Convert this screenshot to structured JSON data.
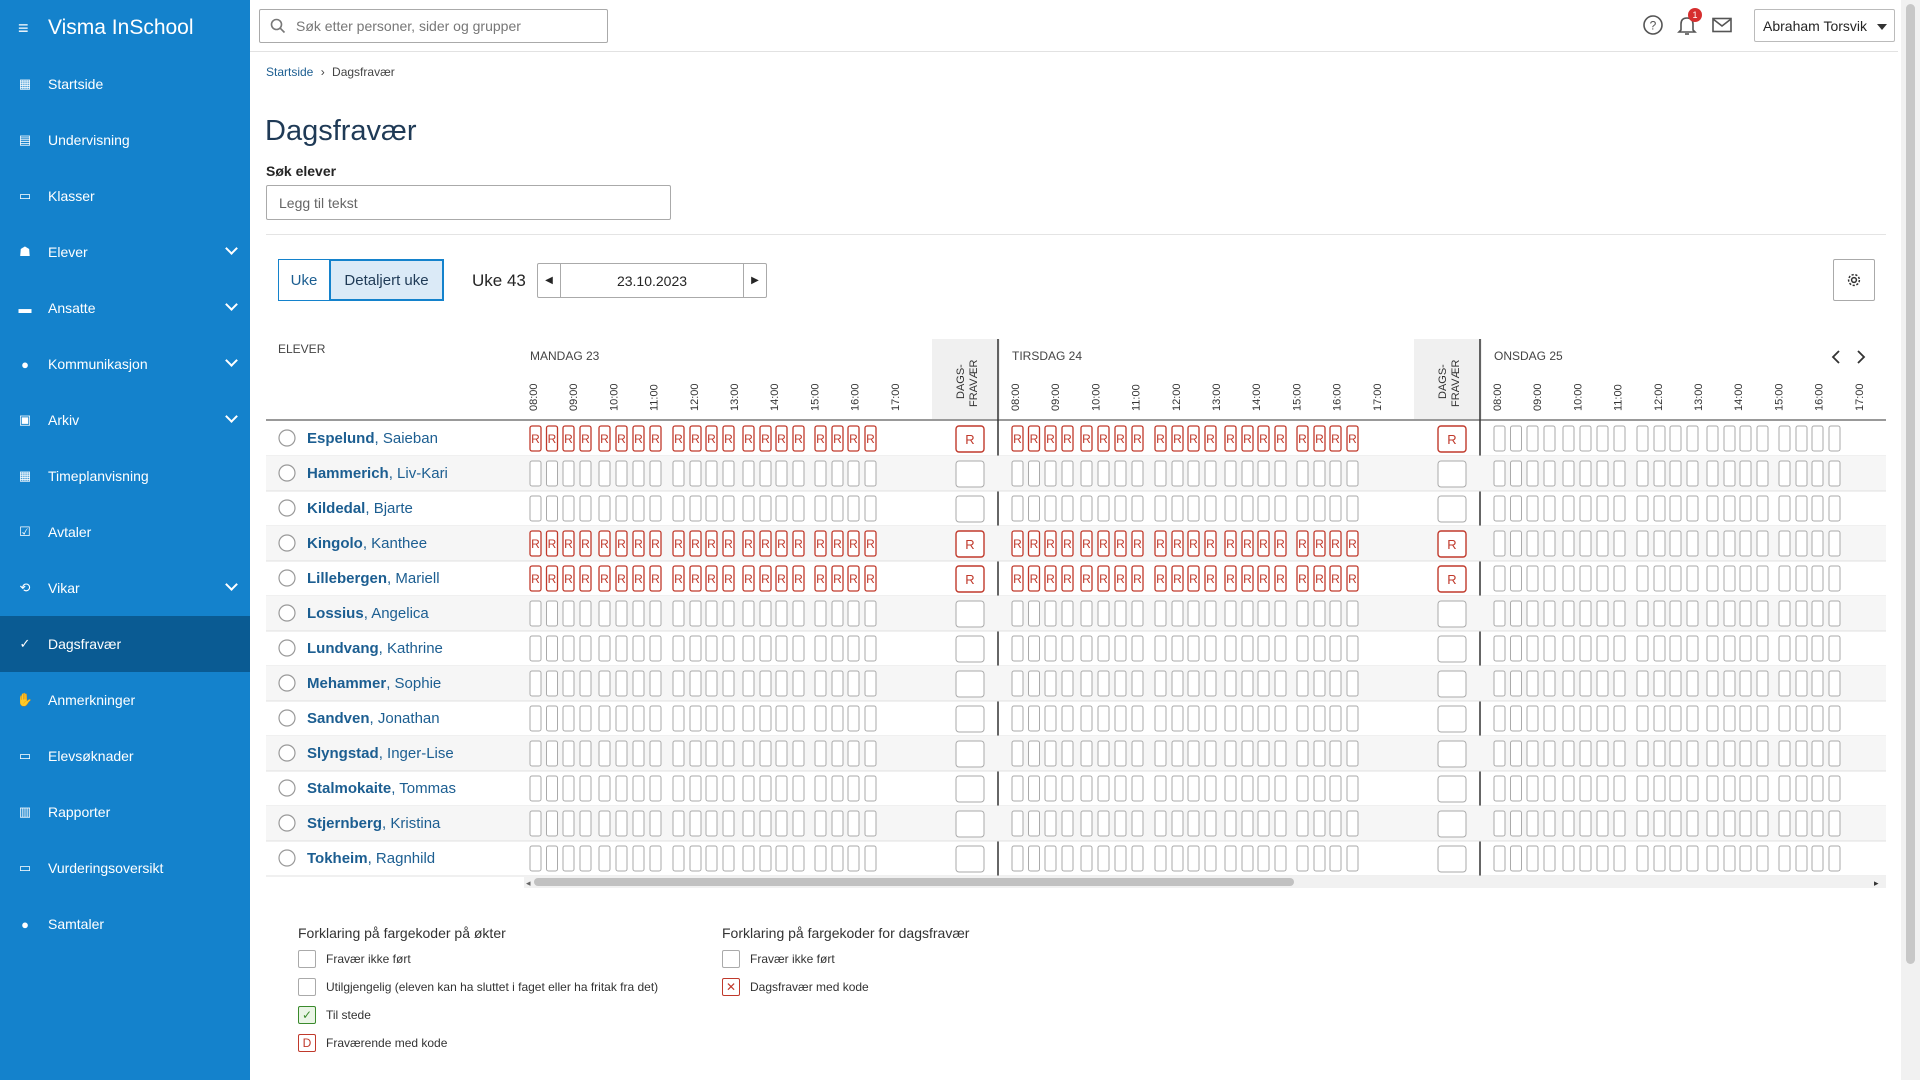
{
  "app": {
    "title": "Visma InSchool"
  },
  "sidebar": {
    "items": [
      {
        "label": "Startside",
        "icon": "grid-icon",
        "chevron": false
      },
      {
        "label": "Undervisning",
        "icon": "book-icon",
        "chevron": false
      },
      {
        "label": "Klasser",
        "icon": "board-icon",
        "chevron": false
      },
      {
        "label": "Elever",
        "icon": "student-icon",
        "chevron": true
      },
      {
        "label": "Ansatte",
        "icon": "briefcase-icon",
        "chevron": true
      },
      {
        "label": "Kommunikasjon",
        "icon": "chat-icon",
        "chevron": true
      },
      {
        "label": "Arkiv",
        "icon": "archive-icon",
        "chevron": true
      },
      {
        "label": "Timeplanvisning",
        "icon": "calendar-icon",
        "chevron": false
      },
      {
        "label": "Avtaler",
        "icon": "calendar-check-icon",
        "chevron": false
      },
      {
        "label": "Vikar",
        "icon": "swap-icon",
        "chevron": true
      },
      {
        "label": "Dagsfravær",
        "icon": "user-check-icon",
        "chevron": false,
        "active": true
      },
      {
        "label": "Anmerkninger",
        "icon": "hand-icon",
        "chevron": false
      },
      {
        "label": "Elevsøknader",
        "icon": "inbox-icon",
        "chevron": false
      },
      {
        "label": "Rapporter",
        "icon": "bar-chart-icon",
        "chevron": false
      },
      {
        "label": "Vurderingsoversikt",
        "icon": "board-icon",
        "chevron": false
      },
      {
        "label": "Samtaler",
        "icon": "chat-icon",
        "chevron": false
      }
    ]
  },
  "topbar": {
    "search_placeholder": "Søk etter personer, sider og grupper",
    "notification_count": "1",
    "user_name": "Abraham Torsvik"
  },
  "breadcrumb": {
    "home": "Startside",
    "separator": "›",
    "current": "Dagsfravær"
  },
  "page": {
    "title": "Dagsfravær",
    "search_label": "Søk elever",
    "search_placeholder": "Legg til tekst"
  },
  "controls": {
    "tab_week": "Uke",
    "tab_detailed": "Detaljert uke",
    "week_label": "Uke 43",
    "date": "23.10.2023"
  },
  "grid": {
    "students_header": "ELEVER",
    "dags_label_1": "DAGS-",
    "dags_label_2": "FRAVÆR",
    "days": [
      {
        "label": "MANDAG 23"
      },
      {
        "label": "TIRSDAG 24"
      },
      {
        "label": "ONSDAG 25"
      }
    ],
    "times": [
      "08:00",
      "09:00",
      "10:00",
      "11:00",
      "12:00",
      "13:00",
      "14:00",
      "15:00",
      "16:00",
      "17:00"
    ],
    "code": "R",
    "students": [
      {
        "last": "Espelund",
        "first": "Saieban",
        "mon": "R",
        "tue": "R",
        "mon_day": "R",
        "tue_day": "R"
      },
      {
        "last": "Hammerich",
        "first": "Liv-Kari",
        "mon": "",
        "tue": "",
        "mon_day": "",
        "tue_day": ""
      },
      {
        "last": "Kildedal",
        "first": "Bjarte",
        "mon": "",
        "tue": "",
        "mon_day": "",
        "tue_day": ""
      },
      {
        "last": "Kingolo",
        "first": "Kanthee",
        "mon": "R",
        "tue": "R",
        "mon_day": "R",
        "tue_day": "R"
      },
      {
        "last": "Lillebergen",
        "first": "Mariell",
        "mon": "R",
        "tue": "R",
        "mon_day": "R",
        "tue_day": "R"
      },
      {
        "last": "Lossius",
        "first": "Angelica",
        "mon": "",
        "tue": "",
        "mon_day": "",
        "tue_day": ""
      },
      {
        "last": "Lundvang",
        "first": "Kathrine",
        "mon": "",
        "tue": "",
        "mon_day": "",
        "tue_day": ""
      },
      {
        "last": "Mehammer",
        "first": "Sophie",
        "mon": "",
        "tue": "",
        "mon_day": "",
        "tue_day": ""
      },
      {
        "last": "Sandven",
        "first": "Jonathan",
        "mon": "",
        "tue": "",
        "mon_day": "",
        "tue_day": ""
      },
      {
        "last": "Slyngstad",
        "first": "Inger-Lise",
        "mon": "",
        "tue": "",
        "mon_day": "",
        "tue_day": ""
      },
      {
        "last": "Stalmokaite",
        "first": "Tommas",
        "mon": "",
        "tue": "",
        "mon_day": "",
        "tue_day": ""
      },
      {
        "last": "Stjernberg",
        "first": "Kristina",
        "mon": "",
        "tue": "",
        "mon_day": "",
        "tue_day": ""
      },
      {
        "last": "Tokheim",
        "first": "Ragnhild",
        "mon": "",
        "tue": "",
        "mon_day": "",
        "tue_day": ""
      }
    ]
  },
  "legend": {
    "sessions_title": "Forklaring på fargekoder på økter",
    "sessions": [
      {
        "label": "Fravær ikke ført",
        "mark": ""
      },
      {
        "label": "Utilgjengelig (eleven kan ha sluttet i faget eller ha fritak fra det)",
        "mark": ""
      },
      {
        "label": "Til stede",
        "mark": "✓"
      },
      {
        "label": "Fraværende med kode",
        "mark": "D"
      }
    ],
    "day_title": "Forklaring på fargekoder for dagsfravær",
    "day": [
      {
        "label": "Fravær ikke ført",
        "mark": ""
      },
      {
        "label": "Dagsfravær med kode",
        "mark": "✕"
      }
    ]
  },
  "colors": {
    "sidebar": "#1482cc",
    "sidebar_active": "#0a5b93",
    "absent_code": "#c0392b",
    "present": "#3a8a2c"
  }
}
